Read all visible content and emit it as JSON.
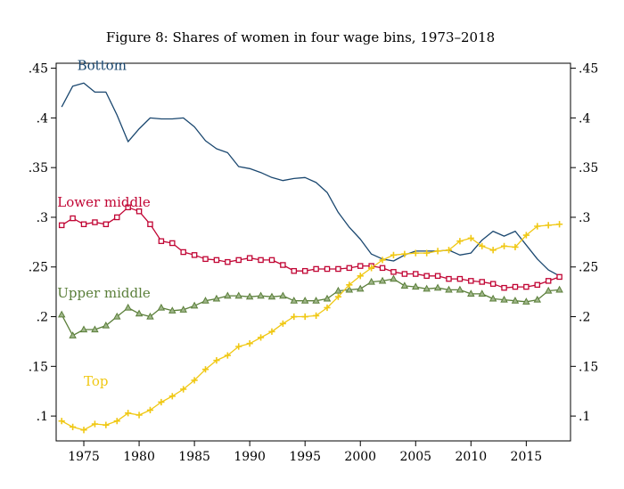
{
  "chart_data": {
    "type": "line",
    "title": "Figure 8: Shares of women in four wage bins, 1973–2018",
    "xlabel": "",
    "ylabel": "",
    "xlim": [
      1972.5,
      2019
    ],
    "ylim": [
      0.075,
      0.455
    ],
    "x_ticks": [
      1975,
      1980,
      1985,
      1990,
      1995,
      2000,
      2005,
      2010,
      2015
    ],
    "x_tick_labels": [
      "1975",
      "1980",
      "1985",
      "1990",
      "1995",
      "2000",
      "2005",
      "2010",
      "2015"
    ],
    "y_ticks": [
      0.1,
      0.15,
      0.2,
      0.25,
      0.3,
      0.35,
      0.4,
      0.45
    ],
    "y_tick_labels": [
      ".1",
      ".15",
      ".2",
      ".25",
      ".3",
      ".35",
      ".4",
      ".45"
    ],
    "right_axis_labels": true,
    "grid": false,
    "x": [
      1973,
      1974,
      1975,
      1976,
      1977,
      1978,
      1979,
      1980,
      1981,
      1982,
      1983,
      1984,
      1985,
      1986,
      1987,
      1988,
      1989,
      1990,
      1991,
      1992,
      1993,
      1994,
      1995,
      1996,
      1997,
      1998,
      1999,
      2000,
      2001,
      2002,
      2003,
      2004,
      2005,
      2006,
      2007,
      2008,
      2009,
      2010,
      2011,
      2012,
      2013,
      2014,
      2015,
      2016,
      2017,
      2018
    ],
    "series": [
      {
        "name": "Bottom",
        "color": "#1a476f",
        "marker": "none",
        "values": [
          0.411,
          0.432,
          0.435,
          0.426,
          0.426,
          0.403,
          0.376,
          0.389,
          0.4,
          0.399,
          0.399,
          0.4,
          0.391,
          0.377,
          0.369,
          0.365,
          0.351,
          0.349,
          0.345,
          0.34,
          0.337,
          0.339,
          0.34,
          0.335,
          0.325,
          0.305,
          0.29,
          0.278,
          0.263,
          0.258,
          0.256,
          0.262,
          0.266,
          0.266,
          0.266,
          0.267,
          0.262,
          0.264,
          0.277,
          0.286,
          0.281,
          0.286,
          0.272,
          0.258,
          0.247,
          0.241
        ]
      },
      {
        "name": "Lower middle",
        "color": "#c10534",
        "marker": "square",
        "values": [
          0.292,
          0.299,
          0.293,
          0.295,
          0.293,
          0.3,
          0.31,
          0.306,
          0.293,
          0.276,
          0.274,
          0.265,
          0.262,
          0.258,
          0.257,
          0.255,
          0.257,
          0.259,
          0.257,
          0.257,
          0.252,
          0.246,
          0.246,
          0.248,
          0.248,
          0.248,
          0.249,
          0.251,
          0.251,
          0.249,
          0.245,
          0.243,
          0.243,
          0.241,
          0.241,
          0.238,
          0.238,
          0.236,
          0.235,
          0.233,
          0.229,
          0.23,
          0.23,
          0.232,
          0.236,
          0.24
        ]
      },
      {
        "name": "Upper middle",
        "color": "#5b7f3a",
        "marker": "triangle",
        "values": [
          0.202,
          0.181,
          0.187,
          0.187,
          0.191,
          0.2,
          0.209,
          0.203,
          0.2,
          0.209,
          0.206,
          0.207,
          0.211,
          0.216,
          0.218,
          0.221,
          0.221,
          0.22,
          0.221,
          0.22,
          0.221,
          0.216,
          0.216,
          0.216,
          0.218,
          0.226,
          0.227,
          0.228,
          0.235,
          0.236,
          0.238,
          0.231,
          0.23,
          0.228,
          0.229,
          0.227,
          0.227,
          0.223,
          0.223,
          0.218,
          0.217,
          0.216,
          0.215,
          0.217,
          0.226,
          0.227
        ]
      },
      {
        "name": "Top",
        "color": "#f0c814",
        "marker": "plus",
        "values": [
          0.095,
          0.089,
          0.086,
          0.092,
          0.091,
          0.095,
          0.103,
          0.101,
          0.106,
          0.114,
          0.12,
          0.127,
          0.136,
          0.147,
          0.156,
          0.161,
          0.17,
          0.173,
          0.179,
          0.185,
          0.193,
          0.2,
          0.2,
          0.201,
          0.209,
          0.22,
          0.232,
          0.241,
          0.249,
          0.257,
          0.262,
          0.263,
          0.264,
          0.264,
          0.266,
          0.267,
          0.276,
          0.279,
          0.271,
          0.267,
          0.271,
          0.27,
          0.282,
          0.291,
          0.292,
          0.293
        ]
      }
    ],
    "annotations": [
      {
        "series": "Bottom",
        "text": "Bottom",
        "x": 1974.4,
        "y": 0.4485
      },
      {
        "series": "Lower middle",
        "text": "Lower middle",
        "x": 1972.6,
        "y": 0.3105
      },
      {
        "series": "Upper middle",
        "text": "Upper middle",
        "x": 1972.6,
        "y": 0.2195
      },
      {
        "series": "Top",
        "text": "Top",
        "x": 1975.0,
        "y": 0.1305
      }
    ]
  }
}
